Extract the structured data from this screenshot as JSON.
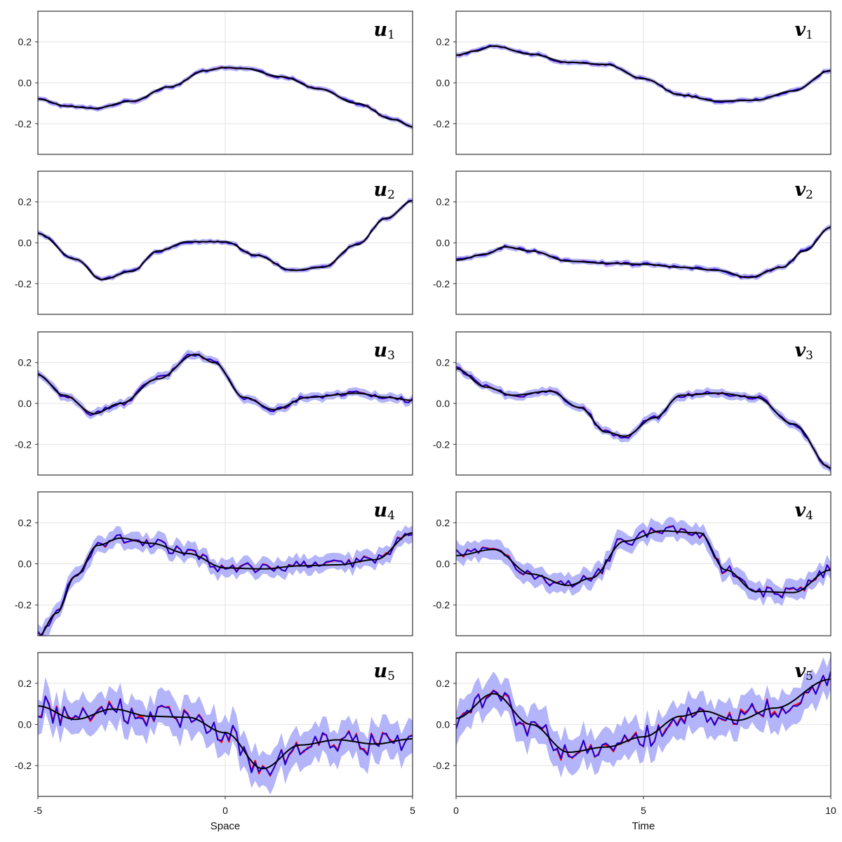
{
  "colors": {
    "band": "#b4b4fa",
    "red": "#ff0000",
    "blue": "#1e00d2",
    "black": "#000000",
    "grid": "#e3e3e3",
    "frame": "#333333"
  },
  "chart_data": {
    "type": "line",
    "columns": [
      {
        "xlabel": "Space",
        "xlim": [
          -5,
          5
        ],
        "xticks": [
          -5,
          0,
          5
        ],
        "xtick_labels": [
          "-5",
          "0",
          "5"
        ]
      },
      {
        "xlabel": "Time",
        "xlim": [
          0,
          10
        ],
        "xticks": [
          0,
          5,
          10
        ],
        "xtick_labels": [
          "0",
          "5",
          "10"
        ]
      }
    ],
    "ylim": [
      -0.35,
      0.35
    ],
    "yticks": [
      -0.2,
      0.0,
      0.2
    ],
    "ytick_labels": [
      "-0.2",
      "0.0",
      "0.2"
    ],
    "panels": [
      {
        "id": "u1",
        "letter": "u",
        "sub": "1",
        "col": 0,
        "row": 0,
        "noise": 0.006,
        "band": 0.012,
        "smooth": [
          [
            -5,
            -0.08
          ],
          [
            -4.2,
            -0.115
          ],
          [
            -3.5,
            -0.125
          ],
          [
            -2.5,
            -0.09
          ],
          [
            -1.5,
            -0.02
          ],
          [
            -0.5,
            0.06
          ],
          [
            0,
            0.075
          ],
          [
            0.5,
            0.07
          ],
          [
            1.5,
            0.03
          ],
          [
            2.5,
            -0.03
          ],
          [
            3.5,
            -0.1
          ],
          [
            4.5,
            -0.18
          ],
          [
            5,
            -0.215
          ]
        ]
      },
      {
        "id": "v1",
        "letter": "v",
        "sub": "1",
        "col": 1,
        "row": 0,
        "noise": 0.006,
        "band": 0.012,
        "smooth": [
          [
            0,
            0.135
          ],
          [
            0.5,
            0.155
          ],
          [
            1,
            0.18
          ],
          [
            2,
            0.14
          ],
          [
            3,
            0.1
          ],
          [
            4,
            0.09
          ],
          [
            5,
            0.02
          ],
          [
            6,
            -0.06
          ],
          [
            7,
            -0.09
          ],
          [
            8,
            -0.085
          ],
          [
            9,
            -0.04
          ],
          [
            10,
            0.06
          ]
        ]
      },
      {
        "id": "u2",
        "letter": "u",
        "sub": "2",
        "col": 0,
        "row": 1,
        "noise": 0.006,
        "band": 0.012,
        "smooth": [
          [
            -5,
            0.045
          ],
          [
            -4,
            -0.08
          ],
          [
            -3.3,
            -0.18
          ],
          [
            -2.5,
            -0.14
          ],
          [
            -1.8,
            -0.04
          ],
          [
            -1,
            0.005
          ],
          [
            0,
            0.005
          ],
          [
            0.8,
            -0.06
          ],
          [
            1.8,
            -0.135
          ],
          [
            2.6,
            -0.12
          ],
          [
            3.5,
            -0.01
          ],
          [
            4.3,
            0.12
          ],
          [
            5,
            0.205
          ]
        ]
      },
      {
        "id": "v2",
        "letter": "v",
        "sub": "2",
        "col": 1,
        "row": 1,
        "noise": 0.007,
        "band": 0.013,
        "smooth": [
          [
            0,
            -0.085
          ],
          [
            0.8,
            -0.055
          ],
          [
            1.3,
            -0.02
          ],
          [
            2,
            -0.04
          ],
          [
            3,
            -0.09
          ],
          [
            4,
            -0.1
          ],
          [
            5,
            -0.105
          ],
          [
            6,
            -0.12
          ],
          [
            7,
            -0.135
          ],
          [
            7.8,
            -0.17
          ],
          [
            8.7,
            -0.12
          ],
          [
            9.3,
            -0.04
          ],
          [
            10,
            0.075
          ]
        ]
      },
      {
        "id": "u3",
        "letter": "u",
        "sub": "3",
        "col": 0,
        "row": 2,
        "noise": 0.012,
        "band": 0.02,
        "smooth": [
          [
            -5,
            0.14
          ],
          [
            -4.3,
            0.04
          ],
          [
            -3.5,
            -0.05
          ],
          [
            -2.8,
            0.0
          ],
          [
            -1.8,
            0.12
          ],
          [
            -0.8,
            0.24
          ],
          [
            -0.3,
            0.2
          ],
          [
            0.5,
            0.03
          ],
          [
            1.3,
            -0.03
          ],
          [
            2.2,
            0.03
          ],
          [
            3.5,
            0.05
          ],
          [
            4.3,
            0.03
          ],
          [
            5,
            0.015
          ]
        ]
      },
      {
        "id": "v3",
        "letter": "v",
        "sub": "3",
        "col": 1,
        "row": 2,
        "noise": 0.012,
        "band": 0.02,
        "smooth": [
          [
            0,
            0.17
          ],
          [
            0.8,
            0.08
          ],
          [
            1.5,
            0.04
          ],
          [
            2.5,
            0.06
          ],
          [
            3.3,
            -0.02
          ],
          [
            4,
            -0.14
          ],
          [
            4.5,
            -0.16
          ],
          [
            5.3,
            -0.07
          ],
          [
            6,
            0.04
          ],
          [
            7,
            0.05
          ],
          [
            8,
            0.03
          ],
          [
            9,
            -0.1
          ],
          [
            10,
            -0.315
          ]
        ]
      },
      {
        "id": "u4",
        "letter": "u",
        "sub": "4",
        "col": 0,
        "row": 3,
        "noise": 0.025,
        "band": 0.04,
        "smooth": [
          [
            -5,
            -0.355
          ],
          [
            -4.5,
            -0.24
          ],
          [
            -4,
            -0.06
          ],
          [
            -3.4,
            0.09
          ],
          [
            -2.8,
            0.125
          ],
          [
            -2,
            0.1
          ],
          [
            -1,
            0.05
          ],
          [
            0,
            -0.02
          ],
          [
            1,
            -0.025
          ],
          [
            2,
            -0.01
          ],
          [
            3,
            -0.005
          ],
          [
            4,
            0.02
          ],
          [
            5,
            0.15
          ]
        ]
      },
      {
        "id": "v4",
        "letter": "v",
        "sub": "4",
        "col": 1,
        "row": 3,
        "noise": 0.028,
        "band": 0.045,
        "smooth": [
          [
            0,
            0.04
          ],
          [
            1,
            0.07
          ],
          [
            2,
            -0.05
          ],
          [
            3,
            -0.105
          ],
          [
            3.6,
            -0.07
          ],
          [
            4.5,
            0.11
          ],
          [
            5.5,
            0.16
          ],
          [
            6.5,
            0.15
          ],
          [
            7.2,
            -0.03
          ],
          [
            8,
            -0.135
          ],
          [
            9,
            -0.14
          ],
          [
            10,
            -0.03
          ]
        ]
      },
      {
        "id": "u5",
        "letter": "u",
        "sub": "5",
        "col": 0,
        "row": 4,
        "noise": 0.055,
        "band": 0.085,
        "smooth": [
          [
            -5,
            0.09
          ],
          [
            -4,
            0.025
          ],
          [
            -3,
            0.075
          ],
          [
            -2,
            0.04
          ],
          [
            -1,
            0.035
          ],
          [
            0,
            -0.04
          ],
          [
            1,
            -0.215
          ],
          [
            2,
            -0.1
          ],
          [
            3,
            -0.075
          ],
          [
            4,
            -0.095
          ],
          [
            5,
            -0.07
          ]
        ]
      },
      {
        "id": "v5",
        "letter": "v",
        "sub": "5",
        "col": 1,
        "row": 4,
        "noise": 0.055,
        "band": 0.085,
        "smooth": [
          [
            0,
            0.03
          ],
          [
            1,
            0.15
          ],
          [
            2,
            0.0
          ],
          [
            3,
            -0.135
          ],
          [
            4,
            -0.11
          ],
          [
            5,
            -0.06
          ],
          [
            6,
            0.04
          ],
          [
            6.6,
            0.065
          ],
          [
            7.5,
            0.02
          ],
          [
            8.5,
            0.08
          ],
          [
            10,
            0.22
          ]
        ]
      }
    ]
  }
}
